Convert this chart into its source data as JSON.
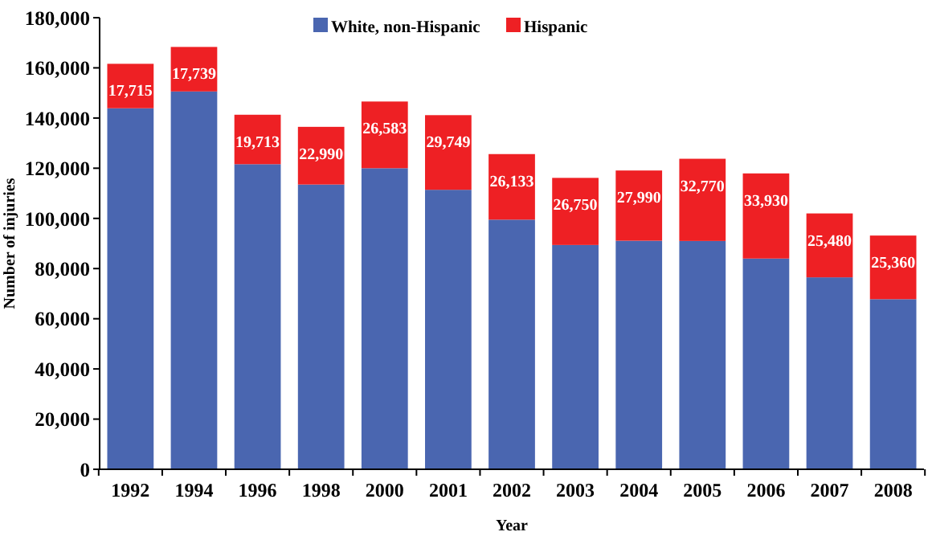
{
  "chart_data": {
    "type": "bar",
    "stacked": true,
    "xlabel": "Year",
    "ylabel": "Number of injuries",
    "categories": [
      "1992",
      "1994",
      "1996",
      "1998",
      "2000",
      "2001",
      "2002",
      "2003",
      "2004",
      "2005",
      "2006",
      "2007",
      "2008"
    ],
    "series": [
      {
        "name": "White, non-Hispanic",
        "color": "#4a66b0",
        "values": [
          143900,
          150600,
          121600,
          113500,
          120000,
          111400,
          99500,
          89400,
          91100,
          91000,
          84000,
          76500,
          67800
        ]
      },
      {
        "name": "Hispanic",
        "color": "#ee2024",
        "values": [
          17715,
          17739,
          19713,
          22990,
          26583,
          29749,
          26133,
          26750,
          27990,
          32770,
          33930,
          25480,
          25360
        ],
        "value_labels": [
          "17,715",
          "17,739",
          "19,713",
          "22,990",
          "26,583",
          "29,749",
          "26,133",
          "26,750",
          "27,990",
          "32,770",
          "33,930",
          "25,480",
          "25,360"
        ]
      }
    ],
    "ylim": [
      0,
      180000
    ],
    "yticks": [
      {
        "value": 0,
        "label": "0"
      },
      {
        "value": 20000,
        "label": "20,000"
      },
      {
        "value": 40000,
        "label": "40,000"
      },
      {
        "value": 60000,
        "label": "60,000"
      },
      {
        "value": 80000,
        "label": "80,000"
      },
      {
        "value": 100000,
        "label": "100,000"
      },
      {
        "value": 120000,
        "label": "120,000"
      },
      {
        "value": 140000,
        "label": "140,000"
      },
      {
        "value": 160000,
        "label": "160,000"
      },
      {
        "value": 180000,
        "label": "180,000"
      }
    ],
    "grid": false,
    "legend": "top"
  }
}
